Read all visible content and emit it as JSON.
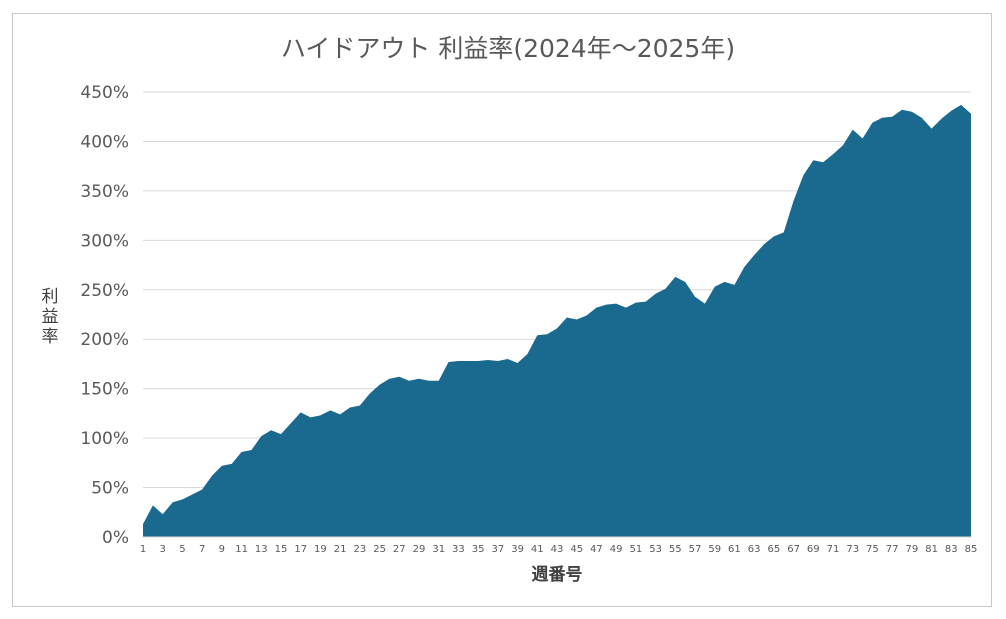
{
  "chart_data": {
    "type": "area",
    "title": "ハイドアウト 利益率(2024年～2025年)",
    "xlabel": "週番号",
    "ylabel": "利益率",
    "ylim": [
      0,
      450
    ],
    "y_ticks": [
      "0%",
      "50%",
      "100%",
      "150%",
      "200%",
      "250%",
      "300%",
      "350%",
      "400%",
      "450%"
    ],
    "x": [
      1,
      2,
      3,
      4,
      5,
      6,
      7,
      8,
      9,
      10,
      11,
      12,
      13,
      14,
      15,
      16,
      17,
      18,
      19,
      20,
      21,
      22,
      23,
      24,
      25,
      26,
      27,
      28,
      29,
      30,
      31,
      32,
      33,
      34,
      35,
      36,
      37,
      38,
      39,
      40,
      41,
      42,
      43,
      44,
      45,
      46,
      47,
      48,
      49,
      50,
      51,
      52,
      53,
      54,
      55,
      56,
      57,
      58,
      59,
      60,
      61,
      62,
      63,
      64,
      65,
      66,
      67,
      68,
      69,
      70,
      71,
      72,
      73,
      74,
      75,
      76,
      77,
      78,
      79,
      80,
      81,
      82,
      83,
      84,
      85
    ],
    "x_tick_labels": [
      "1",
      "3",
      "5",
      "7",
      "9",
      "11",
      "13",
      "15",
      "17",
      "19",
      "21",
      "23",
      "25",
      "27",
      "29",
      "31",
      "33",
      "35",
      "37",
      "39",
      "41",
      "43",
      "45",
      "47",
      "49",
      "51",
      "53",
      "55",
      "57",
      "59",
      "61",
      "63",
      "65",
      "67",
      "69",
      "71",
      "73",
      "75",
      "77",
      "79",
      "81",
      "83",
      "85"
    ],
    "values": [
      13,
      32,
      23,
      35,
      38,
      43,
      48,
      62,
      72,
      74,
      86,
      88,
      102,
      108,
      104,
      115,
      126,
      121,
      123,
      128,
      124,
      131,
      133,
      145,
      154,
      160,
      162,
      158,
      160,
      158,
      158,
      177,
      178,
      178,
      178,
      179,
      178,
      180,
      176,
      185,
      204,
      205,
      211,
      222,
      220,
      224,
      232,
      235,
      236,
      232,
      237,
      238,
      246,
      251,
      263,
      258,
      243,
      236,
      253,
      258,
      255,
      273,
      285,
      296,
      304,
      308,
      340,
      366,
      381,
      379,
      387,
      396,
      412,
      403,
      419,
      424,
      425,
      432,
      430,
      424,
      413,
      423,
      431,
      437,
      428
    ],
    "series_color": "#1a6a8f",
    "grid": true
  }
}
